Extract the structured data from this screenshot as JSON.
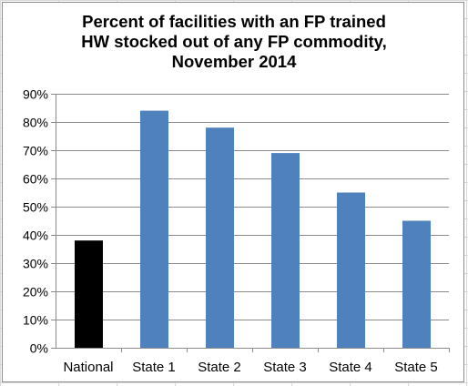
{
  "chart_data": {
    "type": "bar",
    "title_lines": [
      "Percent of facilities with an FP trained",
      "HW stocked out of any FP commodity,",
      "November 2014"
    ],
    "categories": [
      "National",
      "State 1",
      "State 2",
      "State 3",
      "State 4",
      "State 5"
    ],
    "values": [
      38,
      84,
      78,
      69,
      55,
      45
    ],
    "value_unit": "%",
    "ylim": [
      0,
      90
    ],
    "ytick_step": 10,
    "y_ticks": [
      "0%",
      "10%",
      "20%",
      "30%",
      "40%",
      "50%",
      "60%",
      "70%",
      "80%",
      "90%"
    ],
    "gridlines": true,
    "legend": false,
    "colors": {
      "national": "#000000",
      "states": "#4f81bd",
      "gridline": "#8c8c8c",
      "axis": "#8c8c8c"
    }
  }
}
